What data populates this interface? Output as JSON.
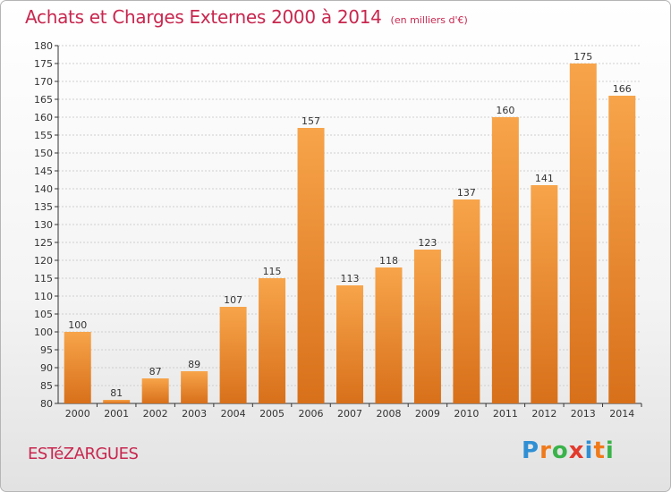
{
  "title": "Achats et Charges Externes 2000 à 2014",
  "unit": "(en milliers d'€)",
  "place": "ESTéZARGUES",
  "logo": {
    "letters": [
      "P",
      "r",
      "o",
      "x",
      "i",
      "t",
      "i"
    ],
    "colors": [
      "#2f8fd4",
      "#f07a1a",
      "#3ab34a",
      "#e23a2c",
      "#2f8fd4",
      "#f07a1a",
      "#3ab34a"
    ]
  },
  "colors": {
    "bar_top": "#f7a44a",
    "bar_bottom": "#d8701a",
    "text": "#c8274f",
    "grid": "#cfcfcf"
  },
  "chart_data": {
    "type": "bar",
    "title": "Achats et Charges Externes 2000 à 2014",
    "subtitle": "(en milliers d'€)",
    "categories": [
      "2000",
      "2001",
      "2002",
      "2003",
      "2004",
      "2005",
      "2006",
      "2007",
      "2008",
      "2009",
      "2010",
      "2011",
      "2012",
      "2013",
      "2014"
    ],
    "values": [
      100,
      81,
      87,
      89,
      107,
      115,
      157,
      113,
      118,
      123,
      137,
      160,
      141,
      175,
      166
    ],
    "ylim": [
      80,
      180
    ],
    "ytick_step": 5,
    "grid": "horizontal",
    "xlabel": "",
    "ylabel": ""
  }
}
